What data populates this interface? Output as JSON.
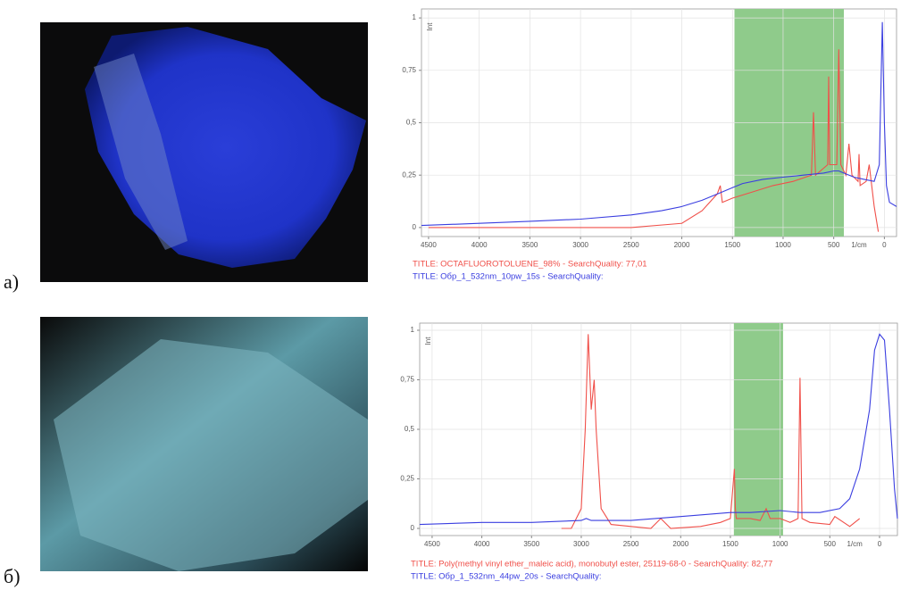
{
  "chart_data": [
    {
      "type": "line",
      "panel_label": "а)",
      "ylabel": "Int",
      "xlabel": "1/cm",
      "xlim": [
        4570,
        -120
      ],
      "xticks": [
        4500,
        4000,
        3500,
        3000,
        2500,
        2000,
        1500,
        1000,
        500,
        0
      ],
      "ylim": [
        -0.043,
        1.043
      ],
      "yticks": [
        0,
        {
          "value": 0.25,
          "label": "0,25"
        },
        {
          "value": 0.5,
          "label": "0,5"
        },
        {
          "value": 0.75,
          "label": "0,75"
        },
        1
      ],
      "grid": true,
      "highlight": [
        1480,
        400
      ],
      "highlight_color": "#8fcb8b",
      "series": [
        {
          "name": "TITLE:  OCTAFLUOROTOLUENE_98% - SearchQuality: 77,01",
          "color": "#f0504a",
          "x": [
            4500,
            3000,
            2500,
            2000,
            1800,
            1650,
            1620,
            1600,
            1500,
            1300,
            1100,
            900,
            720,
            700,
            680,
            560,
            550,
            540,
            470,
            450,
            430,
            380,
            350,
            320,
            260,
            250,
            240,
            180,
            150,
            100,
            60
          ],
          "values": [
            0,
            0,
            0,
            0.02,
            0.08,
            0.16,
            0.2,
            0.12,
            0.14,
            0.17,
            0.2,
            0.22,
            0.25,
            0.55,
            0.25,
            0.3,
            0.72,
            0.3,
            0.3,
            0.85,
            0.3,
            0.25,
            0.4,
            0.25,
            0.22,
            0.35,
            0.2,
            0.22,
            0.3,
            0.1,
            -0.02
          ]
        },
        {
          "name": "TITLE: Обр_1_532nm_10pw_15s - SearchQuality:",
          "color": "#3a3ee0",
          "x": [
            4570,
            4000,
            3500,
            3000,
            2500,
            2200,
            2000,
            1800,
            1600,
            1500,
            1400,
            1200,
            1000,
            800,
            600,
            500,
            450,
            400,
            300,
            200,
            100,
            50,
            20,
            0,
            -20,
            -50,
            -120
          ],
          "values": [
            0.01,
            0.02,
            0.03,
            0.04,
            0.06,
            0.08,
            0.1,
            0.13,
            0.17,
            0.19,
            0.21,
            0.23,
            0.24,
            0.25,
            0.26,
            0.27,
            0.27,
            0.26,
            0.24,
            0.23,
            0.22,
            0.3,
            0.98,
            0.5,
            0.2,
            0.12,
            0.1
          ]
        }
      ]
    },
    {
      "type": "line",
      "panel_label": "б)",
      "ylabel": "Int",
      "xlabel": "1/cm",
      "xlim": [
        4625,
        -180
      ],
      "xticks": [
        4500,
        4000,
        3500,
        3000,
        2500,
        2000,
        1500,
        1000,
        500,
        0
      ],
      "ylim": [
        -0.036,
        1.036
      ],
      "yticks": [
        0,
        {
          "value": 0.25,
          "label": "0,25"
        },
        {
          "value": 0.5,
          "label": "0,5"
        },
        {
          "value": 0.75,
          "label": "0,75"
        },
        1
      ],
      "grid": true,
      "highlight": [
        1465,
        970
      ],
      "highlight_color": "#8fcb8b",
      "series": [
        {
          "name": "TITLE:  Poly(methyl vinyl ether_maleic acid), monobutyl ester, 25119-68-0 - SearchQuality: 82,77",
          "color": "#f0504a",
          "x": [
            3200,
            3100,
            3000,
            2960,
            2930,
            2900,
            2870,
            2850,
            2800,
            2700,
            2300,
            2200,
            2100,
            1800,
            1600,
            1500,
            1460,
            1450,
            1440,
            1300,
            1200,
            1140,
            1100,
            1000,
            900,
            820,
            800,
            780,
            700,
            500,
            450,
            300,
            200
          ],
          "values": [
            0,
            0,
            0.1,
            0.5,
            0.98,
            0.6,
            0.75,
            0.5,
            0.1,
            0.02,
            0,
            0.05,
            0,
            0.01,
            0.03,
            0.05,
            0.3,
            0.1,
            0.05,
            0.05,
            0.04,
            0.1,
            0.05,
            0.05,
            0.03,
            0.05,
            0.76,
            0.05,
            0.03,
            0.02,
            0.06,
            0.01,
            0.05
          ]
        },
        {
          "name": "TITLE: Обр_1_532nm_44pw_20s - SearchQuality:",
          "color": "#3a3ee0",
          "x": [
            4625,
            4000,
            3500,
            3000,
            2950,
            2900,
            2500,
            2000,
            1500,
            1300,
            1000,
            800,
            600,
            400,
            300,
            200,
            100,
            50,
            0,
            -50,
            -100,
            -150,
            -180
          ],
          "values": [
            0.02,
            0.03,
            0.03,
            0.04,
            0.05,
            0.04,
            0.04,
            0.06,
            0.08,
            0.08,
            0.09,
            0.08,
            0.08,
            0.1,
            0.15,
            0.3,
            0.6,
            0.9,
            0.98,
            0.95,
            0.6,
            0.2,
            0.05
          ]
        }
      ]
    }
  ]
}
